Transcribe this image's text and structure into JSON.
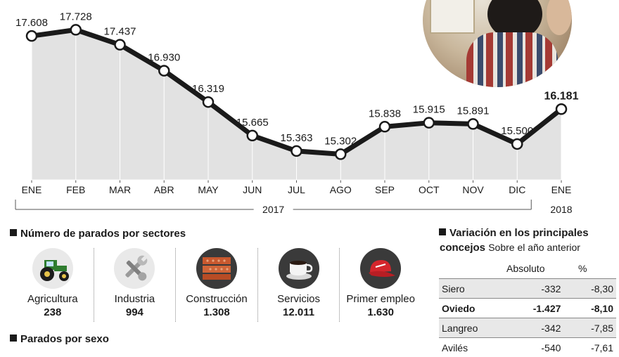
{
  "chart_data": {
    "type": "line",
    "categories": [
      "ENE",
      "FEB",
      "MAR",
      "ABR",
      "MAY",
      "JUN",
      "JUL",
      "AGO",
      "SEP",
      "OCT",
      "NOV",
      "DIC",
      "ENE"
    ],
    "values": [
      17608,
      17728,
      17437,
      16930,
      16319,
      15665,
      15363,
      15302,
      15838,
      15915,
      15891,
      15500,
      16181
    ],
    "value_labels": [
      "17.608",
      "17.728",
      "17.437",
      "16.930",
      "16.319",
      "15.665",
      "15.363",
      "15.302",
      "15.838",
      "15.915",
      "15.891",
      "15.500",
      "16.181"
    ],
    "year_labels": [
      "2017",
      "2018"
    ],
    "highlight_last": true,
    "ylim": [
      14800,
      18200
    ],
    "grid": "vertical",
    "colors": {
      "line": "#1a1a1a",
      "area": "#e2e2e2",
      "grid": "#ffffff"
    }
  },
  "sectors": {
    "title": "Número de parados por sectores",
    "items": [
      {
        "icon": "tractor-icon",
        "label": "Agricultura",
        "value": "238"
      },
      {
        "icon": "wrench-icon",
        "label": "Industria",
        "value": "994"
      },
      {
        "icon": "bricks-icon",
        "label": "Construcción",
        "value": "1.308"
      },
      {
        "icon": "coffee-cup-icon",
        "label": "Servicios",
        "value": "12.011"
      },
      {
        "icon": "cap-icon",
        "label": "Primer empleo",
        "value": "1.630"
      }
    ]
  },
  "sexo": {
    "title": "Parados por sexo"
  },
  "variacion": {
    "title": "Variación en los principales",
    "title2": "concejos",
    "subtitle": "Sobre el año anterior",
    "headers": [
      "Absoluto",
      "%"
    ],
    "rows": [
      {
        "name": "Siero",
        "abs": "-332",
        "pct": "-8,30",
        "bold": false
      },
      {
        "name": "Oviedo",
        "abs": "-1.427",
        "pct": "-8,10",
        "bold": true
      },
      {
        "name": "Langreo",
        "abs": "-342",
        "pct": "-7,85",
        "bold": false
      },
      {
        "name": "Avilés",
        "abs": "-540",
        "pct": "-7,61",
        "bold": false
      }
    ]
  }
}
